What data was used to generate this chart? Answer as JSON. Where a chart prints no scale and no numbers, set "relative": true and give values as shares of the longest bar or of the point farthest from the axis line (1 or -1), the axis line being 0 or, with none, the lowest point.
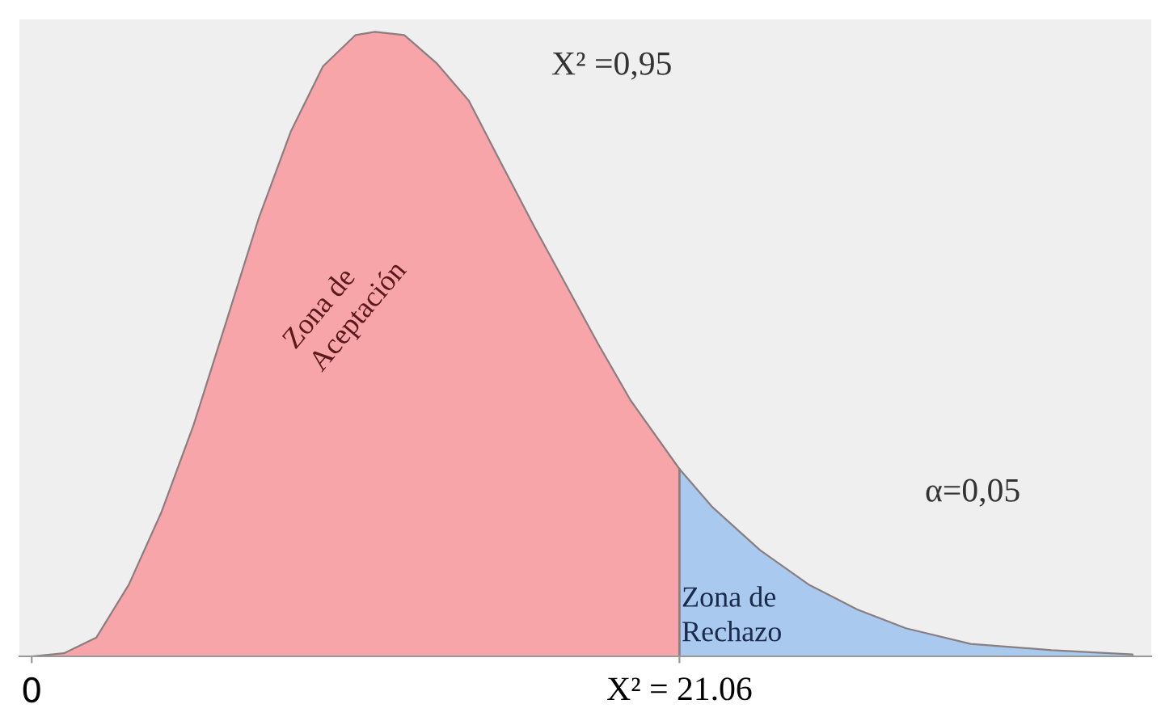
{
  "chart_data": {
    "type": "area",
    "relative": true,
    "grid": false,
    "legend": false,
    "xlim": [
      -0.4,
      36.4
    ],
    "xticks": [
      0,
      {
        "value": 21.06,
        "label": "X² = 21.06"
      }
    ],
    "series": [
      {
        "color": "#f8a5aa",
        "x": [
          0,
          1.05,
          2.1,
          3.16,
          4.21,
          5.26,
          6.32,
          7.37,
          8.42,
          9.47,
          10.53,
          11.16,
          12.11,
          13.16,
          14.21,
          15.26,
          16.32,
          17.37,
          18.42,
          19.47,
          21.06
        ],
        "values": [
          0,
          0.005,
          0.03,
          0.115,
          0.23,
          0.37,
          0.535,
          0.7,
          0.84,
          0.945,
          0.995,
          1,
          0.995,
          0.95,
          0.89,
          0.79,
          0.69,
          0.595,
          0.5,
          0.41,
          0.3
        ]
      },
      {
        "color": "#a9c9ee",
        "x": [
          21.06,
          22.11,
          23.68,
          25.26,
          26.84,
          28.42,
          30.53,
          33.16,
          35.79
        ],
        "values": [
          0.3,
          0.24,
          0.17,
          0.115,
          0.075,
          0.045,
          0.02,
          0.01,
          0.003
        ]
      }
    ],
    "annotations": [
      "X² =0,95",
      "Zona de\nAceptación",
      "α=0,05",
      "Zona de\nRechazo"
    ]
  }
}
